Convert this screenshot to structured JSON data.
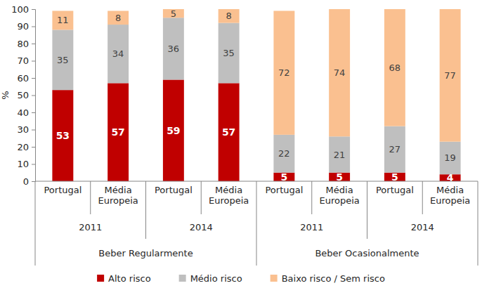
{
  "chart_data": {
    "type": "bar",
    "stacked": true,
    "data_labels": true,
    "grid": false,
    "legend": "bottom",
    "y_label": "%",
    "categories": [
      [
        "Beber Regularmente",
        "2011",
        "Portugal"
      ],
      [
        "Beber Regularmente",
        "2011",
        "Média Europeia"
      ],
      [
        "Beber Regularmente",
        "2014",
        "Portugal"
      ],
      [
        "Beber Regularmente",
        "2014",
        "Média Europeia"
      ],
      [
        "Beber Ocasionalmente",
        "2011",
        "Portugal"
      ],
      [
        "Beber Ocasionalmente",
        "2011",
        "Média Europeia"
      ],
      [
        "Beber Ocasionalmente",
        "2014",
        "Portugal"
      ],
      [
        "Beber Ocasionalmente",
        "2014",
        "Média Europeia"
      ]
    ],
    "series": [
      {
        "name": "Alto risco",
        "color": "#c00000",
        "values": [
          53,
          57,
          59,
          57,
          5,
          5,
          5,
          4
        ]
      },
      {
        "name": "Médio risco",
        "color": "#bfbfbf",
        "values": [
          35,
          34,
          36,
          35,
          22,
          21,
          27,
          19
        ]
      },
      {
        "name": "Baixo risco / Sem risco",
        "color": "#fac090",
        "values": [
          11,
          8,
          5,
          8,
          72,
          74,
          68,
          77
        ]
      }
    ],
    "ylim": [
      0,
      100
    ],
    "yticks": [
      0,
      10,
      20,
      30,
      40,
      50,
      60,
      70,
      80,
      90,
      100
    ]
  }
}
